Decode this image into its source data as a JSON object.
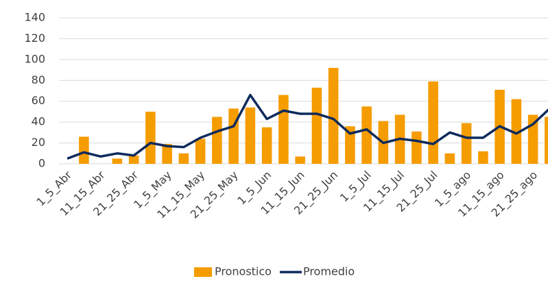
{
  "chart_data": {
    "type": "bar-line",
    "categories": [
      "1_5_Abr",
      null,
      "11_15_Abr",
      null,
      "21_25_Abr",
      null,
      "1_5_May",
      null,
      "11_15_May",
      null,
      "21_25_May",
      null,
      "1_5_Jun",
      null,
      "11_15_Jun",
      null,
      "21_25_Jun",
      null,
      "1_5_Jul",
      null,
      "11_15_Jul",
      null,
      "21_25_Jul",
      null,
      "1_5_ago",
      null,
      "11_15_ago",
      null,
      "21_25_ago",
      null
    ],
    "series": [
      {
        "name": "Pronostico",
        "type": "bar",
        "color": "#f59c00",
        "values": [
          0,
          26,
          0,
          5,
          8,
          50,
          19,
          10,
          24,
          45,
          53,
          54,
          35,
          66,
          7,
          73,
          92,
          36,
          55,
          41,
          47,
          31,
          79,
          10,
          39,
          12,
          71,
          62,
          47,
          45
        ]
      },
      {
        "name": "Promedio",
        "type": "line",
        "color": "#0e2a5c",
        "values": [
          5,
          11,
          7,
          10,
          8,
          20,
          17,
          16,
          25,
          31,
          36,
          66,
          43,
          51,
          48,
          48,
          43,
          29,
          33,
          20,
          24,
          22,
          19,
          30,
          25,
          25,
          36,
          29,
          38,
          53
        ]
      }
    ],
    "ylim": [
      0,
      140
    ],
    "yticks": [
      0,
      20,
      40,
      60,
      80,
      100,
      120,
      140
    ],
    "grid": true,
    "legend": "bottom"
  }
}
